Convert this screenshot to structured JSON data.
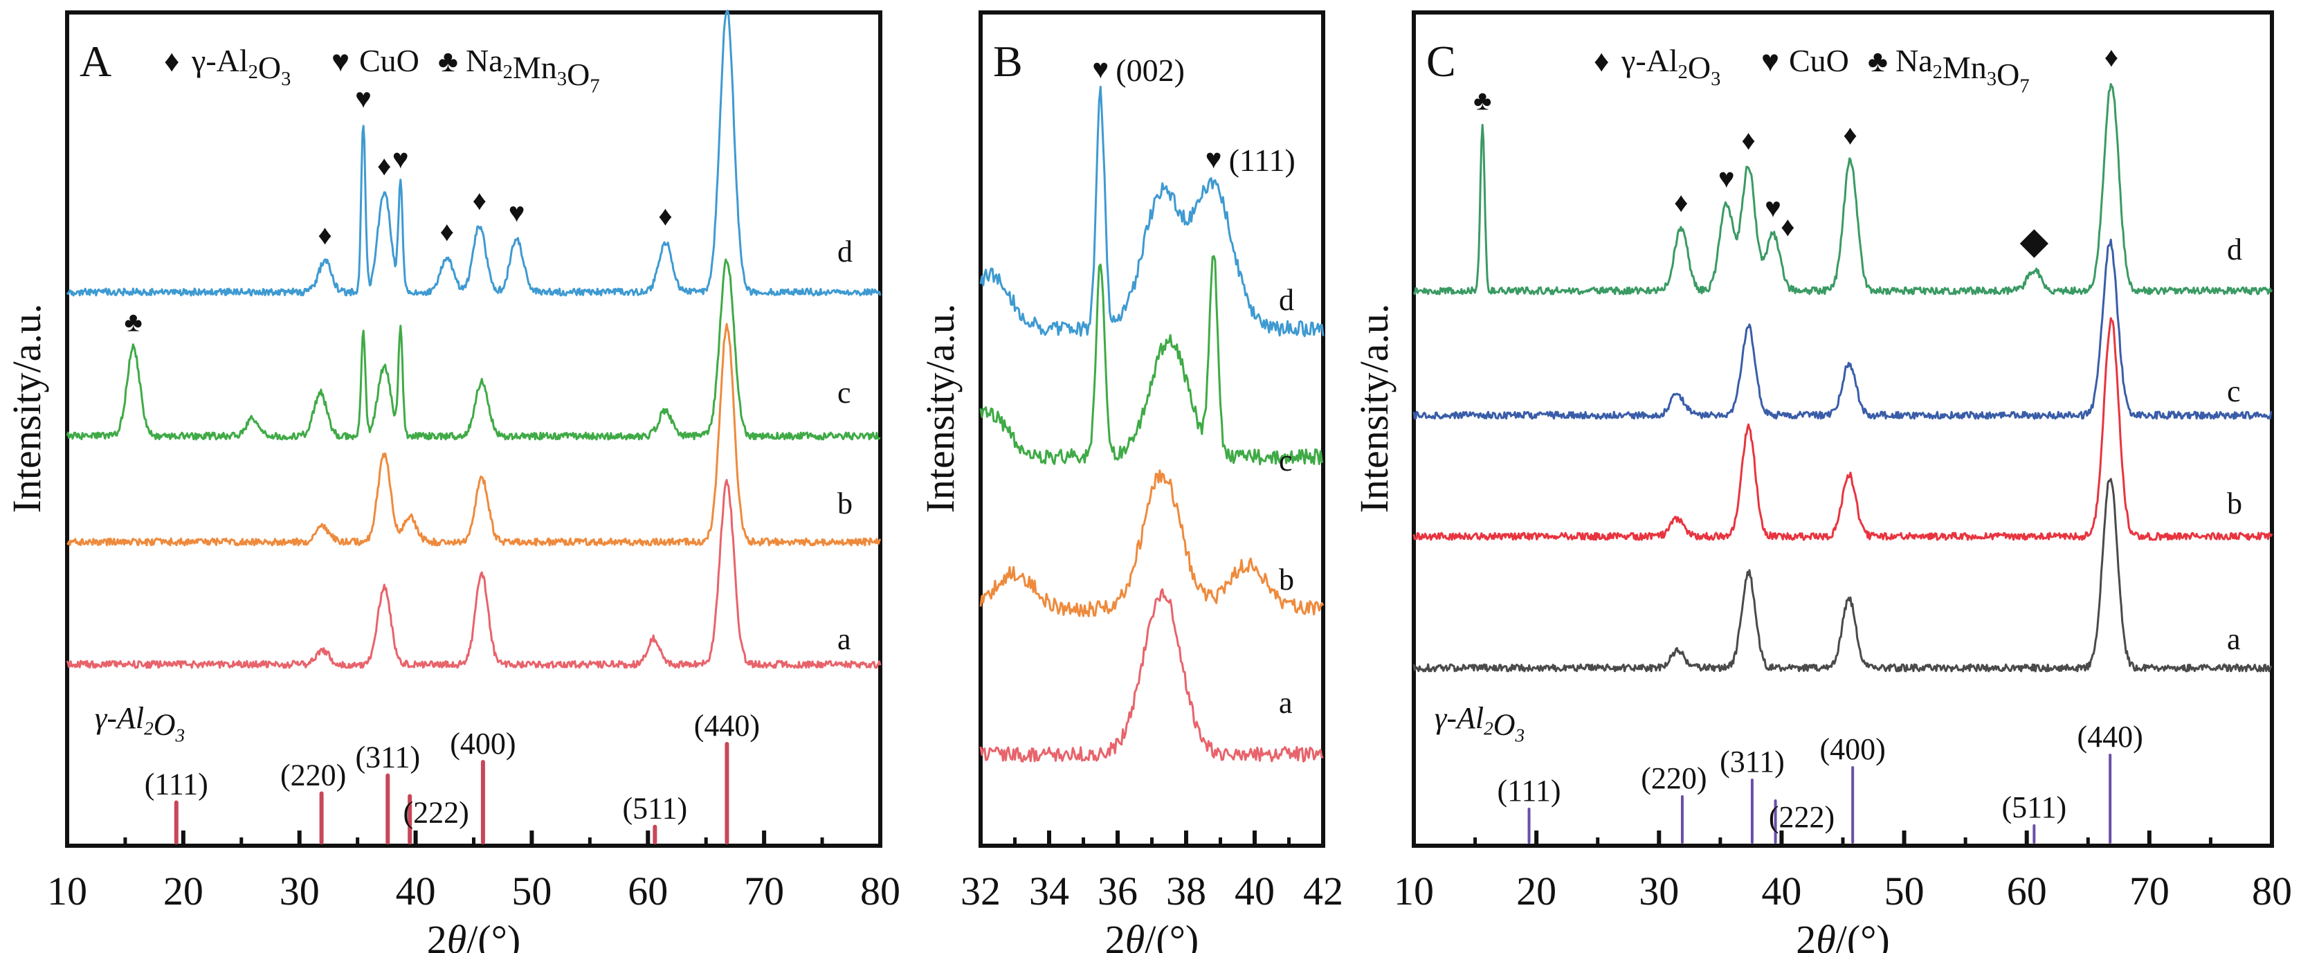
{
  "chart_data": [
    {
      "type": "line",
      "panel_label": "A",
      "xlabel": "2θ/(°)",
      "ylabel": "Intensity/a.u.",
      "xlim": [
        10,
        80
      ],
      "x_ticks": [
        10,
        20,
        30,
        40,
        50,
        60,
        70,
        80
      ],
      "minor_x_ticks": [
        15,
        25,
        35,
        45,
        55,
        65,
        75
      ],
      "legend": [
        {
          "symbol": "♦",
          "label": "γ-Al2O3"
        },
        {
          "symbol": "♥",
          "label": "CuO"
        },
        {
          "symbol": "♣",
          "label": "Na2Mn3O7"
        }
      ],
      "series": [
        {
          "name": "a",
          "color": "#E8636B",
          "peaks": [
            [
              32.0,
              0.8
            ],
            [
              37.3,
              4.5
            ],
            [
              45.7,
              5.2
            ],
            [
              60.5,
              1.5
            ],
            [
              66.8,
              10.5
            ]
          ]
        },
        {
          "name": "b",
          "color": "#EE8A3C",
          "peaks": [
            [
              32.0,
              0.9
            ],
            [
              37.3,
              5.0
            ],
            [
              39.5,
              1.5
            ],
            [
              45.7,
              3.7
            ],
            [
              66.8,
              12.5
            ]
          ]
        },
        {
          "name": "c",
          "color": "#3FAA46",
          "peaks": [
            [
              15.7,
              5.1
            ],
            [
              26.0,
              1.0
            ],
            [
              31.8,
              2.5
            ],
            [
              35.5,
              6.0
            ],
            [
              37.3,
              4.0
            ],
            [
              38.7,
              6.1
            ],
            [
              45.7,
              3.2
            ],
            [
              61.5,
              1.5
            ],
            [
              66.8,
              10.2
            ]
          ]
        },
        {
          "name": "d",
          "color": "#3E9AD1",
          "peaks": [
            [
              32.2,
              1.8
            ],
            [
              35.5,
              9.7
            ],
            [
              37.3,
              5.8
            ],
            [
              38.7,
              6.2
            ],
            [
              42.7,
              2.0
            ],
            [
              45.5,
              3.8
            ],
            [
              48.7,
              3.1
            ],
            [
              61.5,
              2.9
            ],
            [
              66.8,
              16.3
            ]
          ]
        }
      ],
      "peak_markers": [
        {
          "series": "d",
          "x": 32.2,
          "symbol": "♦"
        },
        {
          "series": "d",
          "x": 35.5,
          "symbol": "♥"
        },
        {
          "series": "d",
          "x": 37.3,
          "symbol": "♦"
        },
        {
          "series": "d",
          "x": 38.7,
          "symbol": "♥"
        },
        {
          "series": "d",
          "x": 42.7,
          "symbol": "♦"
        },
        {
          "series": "d",
          "x": 45.5,
          "symbol": "♦"
        },
        {
          "series": "d",
          "x": 48.7,
          "symbol": "♥"
        },
        {
          "series": "d",
          "x": 61.5,
          "symbol": "♦"
        },
        {
          "series": "d",
          "x": 66.8,
          "symbol": "♦"
        },
        {
          "series": "c",
          "x": 15.7,
          "symbol": "♣"
        }
      ],
      "reference": {
        "label": "γ-Al2O3",
        "color": "#C8475A",
        "lines": [
          {
            "hkl": "(111)",
            "x": 19.4,
            "rel_intensity": 0.35
          },
          {
            "hkl": "(220)",
            "x": 31.9,
            "rel_intensity": 0.45
          },
          {
            "hkl": "(311)",
            "x": 37.6,
            "rel_intensity": 0.65
          },
          {
            "hkl": "(222)",
            "x": 39.5,
            "rel_intensity": 0.42
          },
          {
            "hkl": "(400)",
            "x": 45.8,
            "rel_intensity": 0.8
          },
          {
            "hkl": "(511)",
            "x": 60.6,
            "rel_intensity": 0.08
          },
          {
            "hkl": "(440)",
            "x": 66.8,
            "rel_intensity": 1.0
          }
        ]
      }
    },
    {
      "type": "line",
      "panel_label": "B",
      "xlabel": "2θ/(°)",
      "ylabel": "Intensity/a.u.",
      "xlim": [
        32,
        42
      ],
      "x_ticks": [
        32,
        34,
        36,
        38,
        40,
        42
      ],
      "minor_x_ticks": [
        33,
        35,
        37,
        39,
        41
      ],
      "series": [
        {
          "name": "a",
          "color": "#E8636B",
          "peaks": [
            [
              37.3,
              9.0
            ]
          ]
        },
        {
          "name": "b",
          "color": "#EE8A3C",
          "peaks": [
            [
              37.3,
              7.5
            ],
            [
              33.0,
              2.0
            ],
            [
              39.8,
              2.5
            ]
          ]
        },
        {
          "name": "c",
          "color": "#3FAA46",
          "peaks": [
            [
              35.5,
              11.0
            ],
            [
              37.5,
              6.5
            ],
            [
              38.8,
              11.0
            ],
            [
              32.2,
              2.5
            ]
          ]
        },
        {
          "name": "d",
          "color": "#3E9AD1",
          "peaks": [
            [
              35.5,
              13.0
            ],
            [
              37.3,
              7.5
            ],
            [
              38.8,
              8.0
            ],
            [
              32.3,
              3.0
            ]
          ]
        }
      ],
      "peak_markers": [
        {
          "series": "d",
          "x": 35.5,
          "symbol": "♥",
          "label": "(002)"
        },
        {
          "series": "d",
          "x": 38.8,
          "symbol": "♥",
          "label": "(111)"
        }
      ]
    },
    {
      "type": "line",
      "panel_label": "C",
      "xlabel": "2θ/(°)",
      "ylabel": "Intensity/a.u.",
      "xlim": [
        10,
        80
      ],
      "x_ticks": [
        10,
        20,
        30,
        40,
        50,
        60,
        70,
        80
      ],
      "minor_x_ticks": [
        15,
        25,
        35,
        45,
        55,
        65,
        75
      ],
      "legend": [
        {
          "symbol": "♦",
          "label": "γ-Al2O3"
        },
        {
          "symbol": "♥",
          "label": "CuO"
        },
        {
          "symbol": "♣",
          "label": "Na2Mn3O7"
        }
      ],
      "series": [
        {
          "name": "a",
          "color": "#4A4A4A",
          "peaks": [
            [
              31.5,
              1.0
            ],
            [
              37.3,
              5.5
            ],
            [
              45.5,
              4.0
            ],
            [
              66.8,
              11.0
            ]
          ]
        },
        {
          "name": "b",
          "color": "#E8343F",
          "peaks": [
            [
              31.5,
              1.0
            ],
            [
              37.3,
              6.3
            ],
            [
              45.5,
              3.6
            ],
            [
              66.9,
              12.5
            ]
          ]
        },
        {
          "name": "c",
          "color": "#3A5DA8",
          "peaks": [
            [
              31.5,
              1.2
            ],
            [
              37.3,
              5.1
            ],
            [
              45.5,
              3.0
            ],
            [
              66.8,
              10.0
            ]
          ]
        },
        {
          "name": "d",
          "color": "#3A9A63",
          "peaks": [
            [
              15.6,
              9.5
            ],
            [
              31.8,
              3.6
            ],
            [
              35.5,
              5.0
            ],
            [
              37.3,
              7.2
            ],
            [
              39.3,
              3.3
            ],
            [
              45.6,
              7.5
            ],
            [
              60.6,
              1.2
            ],
            [
              66.9,
              12.0
            ]
          ]
        }
      ],
      "peak_markers": [
        {
          "series": "d",
          "x": 15.6,
          "symbol": "♣"
        },
        {
          "series": "d",
          "x": 31.8,
          "symbol": "♦"
        },
        {
          "series": "d",
          "x": 35.5,
          "symbol": "♥"
        },
        {
          "series": "d",
          "x": 37.3,
          "symbol": "♦"
        },
        {
          "series": "d",
          "x": 39.3,
          "symbol": "♥"
        },
        {
          "series": "d",
          "x": 40.5,
          "symbol": "♦"
        },
        {
          "series": "d",
          "x": 45.6,
          "symbol": "♦"
        },
        {
          "series": "d",
          "x": 60.6,
          "symbol": "◆"
        },
        {
          "series": "d",
          "x": 66.9,
          "symbol": "♦"
        }
      ],
      "reference": {
        "label": "γ-Al2O3",
        "color": "#6A4FA8",
        "lines": [
          {
            "hkl": "(111)",
            "x": 19.4,
            "rel_intensity": 0.3
          },
          {
            "hkl": "(220)",
            "x": 31.9,
            "rel_intensity": 0.45
          },
          {
            "hkl": "(311)",
            "x": 37.6,
            "rel_intensity": 0.65
          },
          {
            "hkl": "(222)",
            "x": 39.5,
            "rel_intensity": 0.4
          },
          {
            "hkl": "(400)",
            "x": 45.8,
            "rel_intensity": 0.8
          },
          {
            "hkl": "(511)",
            "x": 60.6,
            "rel_intensity": 0.1
          },
          {
            "hkl": "(440)",
            "x": 66.8,
            "rel_intensity": 0.95
          }
        ]
      }
    }
  ]
}
